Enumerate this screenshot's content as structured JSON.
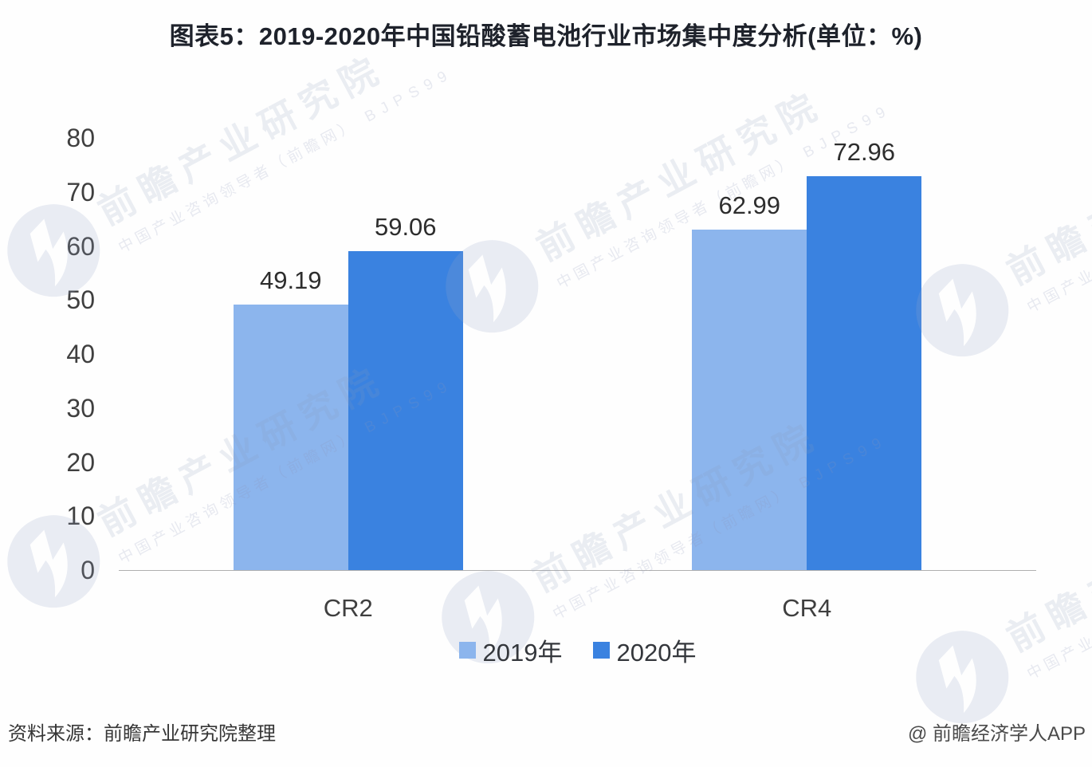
{
  "title": "图表5：2019-2020年中国铅酸蓄电池行业市场集中度分析(单位：%)",
  "chart_data": {
    "type": "bar",
    "categories": [
      "CR2",
      "CR4"
    ],
    "series": [
      {
        "name": "2019年",
        "values": [
          49.19,
          62.99
        ],
        "color": "#8CB5ED"
      },
      {
        "name": "2020年",
        "values": [
          59.06,
          72.96
        ],
        "color": "#3A82E0"
      }
    ],
    "title": "图表5：2019-2020年中国铅酸蓄电池行业市场集中度分析(单位：%)",
    "xlabel": "",
    "ylabel": "",
    "ylim": [
      0,
      80
    ],
    "yticks": [
      0,
      10,
      20,
      30,
      40,
      50,
      60,
      70,
      80
    ],
    "grid": false,
    "data_labels": true,
    "legend_position": "bottom"
  },
  "legend": {
    "items": [
      "2019年",
      "2020年"
    ]
  },
  "watermark": {
    "brand": "前瞻产业研究院",
    "tagline": "中国产业咨询领导者（前瞻网）",
    "code": "BJPS99"
  },
  "footer": {
    "source": "资料来源：前瞻产业研究院整理",
    "credit": "@ 前瞻经济学人APP"
  },
  "colors": {
    "series_2019": "#8CB5ED",
    "series_2020": "#3A82E0",
    "axis_line": "#b0b0b0",
    "text_dark": "#2d2d2d"
  }
}
